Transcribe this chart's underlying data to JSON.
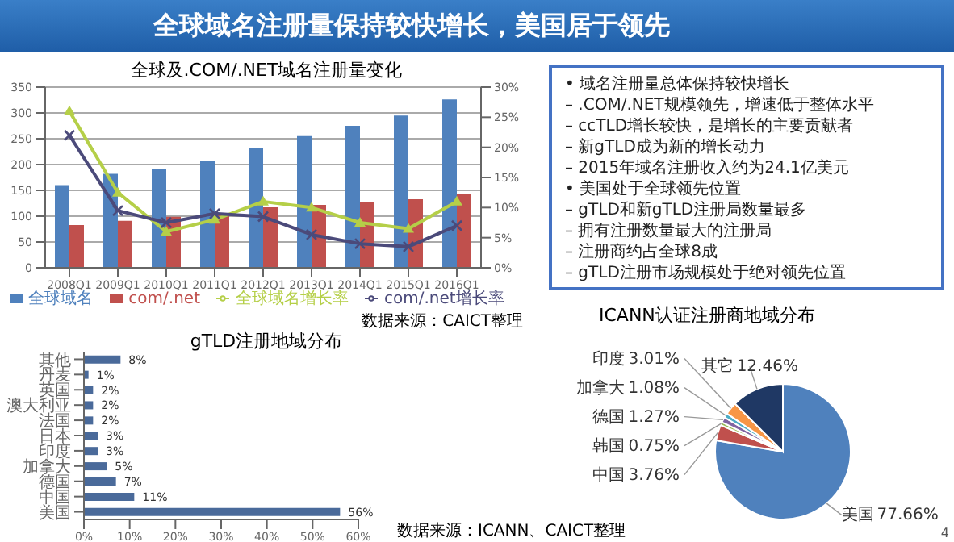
{
  "chart_data": [
    {
      "type": "other",
      "title": "全球域名注册量保持较快增长，美国居于领先",
      "annotations": [
        "• 域名注册量总体保持较快增长",
        "– .COM/.NET规模领先，增速低于整体水平",
        "– ccTLD增长较快，是增长的主要贡献者",
        "– 新gTLD成为新的增长动力",
        "– 2015年域名注册收入约为24.1亿美元",
        "• 美国处于全球领先位置",
        "– gTLD和新gTLD注册局数量最多",
        "– 拥有注册数量最大的注册局",
        "– 注册商约占全球8成",
        "– gTLD注册市场规模处于绝对领先位置"
      ]
    },
    {
      "type": "bar",
      "title": "全球及.COM/.NET域名注册量变化",
      "categories": [
        "2008Q1",
        "2009Q1",
        "2010Q1",
        "2011Q1",
        "2012Q1",
        "2013Q1",
        "2014Q1",
        "2015Q1",
        "2016Q1"
      ],
      "series": [
        {
          "name": "全球域名",
          "type": "bar",
          "color": "#4f81bd",
          "values": [
            160,
            182,
            192,
            208,
            232,
            255,
            275,
            295,
            326
          ]
        },
        {
          "name": "com/.net",
          "type": "bar",
          "color": "#c0504d",
          "values": [
            83,
            91,
            99,
            105,
            117,
            122,
            128,
            133,
            143
          ]
        },
        {
          "name": "全球域名增长率",
          "type": "line",
          "axis": "y2",
          "color": "#b5cf48",
          "marker": "triangle",
          "values": [
            26,
            12.5,
            6,
            8,
            11,
            10,
            7.5,
            6.5,
            11
          ]
        },
        {
          "name": "com/.net增长率",
          "type": "line",
          "axis": "y2",
          "color": "#4b4a7a",
          "marker": "cross",
          "values": [
            22,
            9.5,
            7.5,
            9,
            8.5,
            5.5,
            4,
            3.5,
            7
          ]
        }
      ],
      "ylim": [
        0,
        350
      ],
      "yticks": [
        0,
        50,
        100,
        150,
        200,
        250,
        300,
        350
      ],
      "y2lim": [
        0,
        30
      ],
      "y2ticks": [
        {
          "value": 0,
          "label": "0%"
        },
        {
          "value": 5,
          "label": "5%"
        },
        {
          "value": 10,
          "label": "10%"
        },
        {
          "value": 15,
          "label": "15%"
        },
        {
          "value": 20,
          "label": "20%"
        },
        {
          "value": 25,
          "label": "25%"
        },
        {
          "value": 30,
          "label": "30%"
        }
      ],
      "grid": "y",
      "legend": "bottom",
      "annotations": [
        "数据来源：CAICT整理"
      ]
    },
    {
      "type": "bar",
      "orientation": "horizontal",
      "title": "gTLD注册地域分布",
      "categories": [
        "其他",
        "丹麦",
        "英国",
        "澳大利亚",
        "法国",
        "日本",
        "印度",
        "加拿大",
        "德国",
        "中国",
        "美国"
      ],
      "values": [
        8,
        1,
        2,
        2,
        2,
        3,
        3,
        5,
        7,
        11,
        56
      ],
      "color": "#4a6a9a",
      "value_labels": [
        "8%",
        "1%",
        "2%",
        "2%",
        "2%",
        "3%",
        "3%",
        "5%",
        "7%",
        "11%",
        "56%"
      ],
      "xlim": [
        0,
        60
      ],
      "xticks": [
        {
          "value": 0,
          "label": "0%"
        },
        {
          "value": 10,
          "label": "10%"
        },
        {
          "value": 20,
          "label": "20%"
        },
        {
          "value": 30,
          "label": "30%"
        },
        {
          "value": 40,
          "label": "40%"
        },
        {
          "value": 50,
          "label": "50%"
        },
        {
          "value": 60,
          "label": "60%"
        }
      ],
      "annotations": [
        "数据来源：ICANN、CAICT整理"
      ]
    },
    {
      "type": "pie",
      "title": "ICANN认证注册商地域分布",
      "categories": [
        "美国",
        "中国",
        "韩国",
        "德国",
        "加拿大",
        "印度",
        "其它"
      ],
      "values": [
        77.66,
        3.76,
        0.75,
        1.27,
        1.08,
        3.01,
        12.46
      ],
      "colors": [
        "#4f81bd",
        "#c0504d",
        "#9bbb59",
        "#8064a2",
        "#4bacc6",
        "#f79646",
        "#1f3864"
      ],
      "value_labels": [
        "77.66%",
        "3.76%",
        "0.75%",
        "1.27%",
        "1.08%",
        "3.01%",
        "12.46%"
      ],
      "annotations": [
        "4"
      ]
    }
  ]
}
